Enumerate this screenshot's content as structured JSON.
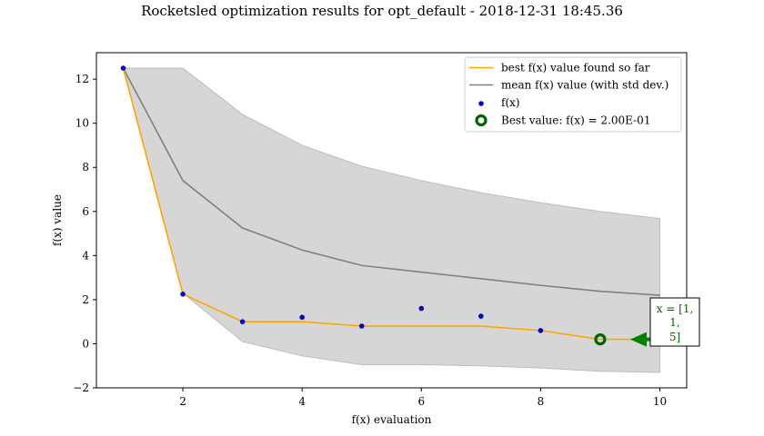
{
  "chart_data": {
    "type": "line",
    "title": "Rocketsled optimization results for opt_default - 2018-12-31 18:45.36",
    "xlabel": "f(x) evaluation",
    "ylabel": "f(x) value",
    "xlim": [
      0.55,
      10.45
    ],
    "ylim": [
      -2,
      13.2
    ],
    "xticks": [
      2,
      4,
      6,
      8,
      10
    ],
    "yticks": [
      -2,
      0,
      2,
      4,
      6,
      8,
      10,
      12
    ],
    "grid": false,
    "legend_position": "top-right",
    "series": [
      {
        "name": "best f(x) value found so far",
        "kind": "line",
        "color": "#FFA500",
        "x": [
          1,
          2,
          3,
          4,
          5,
          6,
          7,
          8,
          9,
          10
        ],
        "y": [
          12.5,
          2.25,
          1.0,
          1.0,
          0.8,
          0.8,
          0.8,
          0.6,
          0.2,
          0.2
        ]
      },
      {
        "name": "mean f(x) value (with std dev.)",
        "kind": "line_band",
        "color": "#808080",
        "band_color": "#d6d6d6",
        "x": [
          1,
          2,
          3,
          4,
          5,
          6,
          7,
          8,
          9,
          10
        ],
        "y": [
          12.5,
          7.4,
          5.25,
          4.25,
          3.55,
          3.25,
          2.95,
          2.65,
          2.38,
          2.2
        ],
        "upper": [
          12.5,
          12.5,
          10.4,
          9.0,
          8.05,
          7.4,
          6.85,
          6.4,
          6.0,
          5.68
        ],
        "lower": [
          12.5,
          2.3,
          0.1,
          -0.55,
          -0.95,
          -0.95,
          -1.0,
          -1.1,
          -1.25,
          -1.3
        ]
      },
      {
        "name": "f(x)",
        "kind": "scatter",
        "color": "#0000CD",
        "x": [
          1,
          2,
          3,
          4,
          5,
          6,
          7,
          8
        ],
        "y": [
          12.5,
          2.25,
          1.0,
          1.2,
          0.8,
          1.6,
          1.25,
          0.6
        ]
      },
      {
        "name": "Best value: f(x) = 2.00E-01",
        "kind": "best_marker",
        "color": "#006400",
        "x": [
          9
        ],
        "y": [
          0.2
        ]
      }
    ],
    "annotation": {
      "lines": [
        "x = [1,",
        "1,",
        "5]"
      ],
      "color": "#006400",
      "arrow_color": "#008000",
      "points_to": [
        9,
        0.2
      ]
    }
  }
}
